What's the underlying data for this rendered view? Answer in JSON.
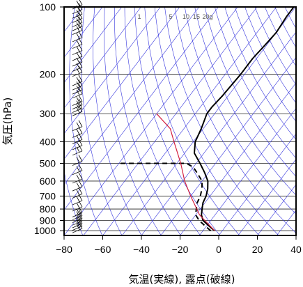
{
  "chart_data": {
    "type": "line",
    "title": "",
    "xlabel": "気温(実線), 露点(破線)",
    "ylabel": "気圧(hPa)",
    "xlim": [
      -80,
      40
    ],
    "ylim": [
      1050,
      100
    ],
    "y_scale": "log",
    "x_ticks": [
      "−80",
      "−60",
      "−40",
      "−20",
      "0",
      "20",
      "40"
    ],
    "y_ticks": [
      "100",
      "200",
      "300",
      "400",
      "500",
      "600",
      "700",
      "800",
      "900",
      "1000"
    ],
    "mixing_ratio_labels": [
      "1",
      "5",
      "10",
      "15",
      "20g"
    ],
    "colors": {
      "isotherms": "#3333dd",
      "dry_adiabats": "#3333dd",
      "lifted_parcel": "#d42040",
      "temperature": "#000000",
      "dewpoint": "#000000",
      "wind_barbs": "#000000",
      "grid": "#000000"
    },
    "series": [
      {
        "role": "temperature",
        "style": "solid",
        "points": [
          {
            "p": 1000,
            "t": -4
          },
          {
            "p": 950,
            "t": -9
          },
          {
            "p": 900,
            "t": -14
          },
          {
            "p": 850,
            "t": -17
          },
          {
            "p": 800,
            "t": -19
          },
          {
            "p": 750,
            "t": -21
          },
          {
            "p": 700,
            "t": -22
          },
          {
            "p": 650,
            "t": -24
          },
          {
            "p": 600,
            "t": -27
          },
          {
            "p": 550,
            "t": -32
          },
          {
            "p": 500,
            "t": -38
          },
          {
            "p": 450,
            "t": -45
          },
          {
            "p": 400,
            "t": -49
          },
          {
            "p": 350,
            "t": -51
          },
          {
            "p": 300,
            "t": -54
          },
          {
            "p": 280,
            "t": -54
          },
          {
            "p": 250,
            "t": -53
          },
          {
            "p": 200,
            "t": -52
          },
          {
            "p": 170,
            "t": -52
          },
          {
            "p": 150,
            "t": -51
          },
          {
            "p": 130,
            "t": -50
          },
          {
            "p": 110,
            "t": -51
          },
          {
            "p": 100,
            "t": -51
          }
        ]
      },
      {
        "role": "dewpoint",
        "style": "dashed",
        "points": [
          {
            "p": 1000,
            "t": -6
          },
          {
            "p": 950,
            "t": -11
          },
          {
            "p": 900,
            "t": -16
          },
          {
            "p": 850,
            "t": -20
          },
          {
            "p": 800,
            "t": -22
          },
          {
            "p": 750,
            "t": -24
          },
          {
            "p": 700,
            "t": -25
          },
          {
            "p": 650,
            "t": -27
          },
          {
            "p": 600,
            "t": -30
          },
          {
            "p": 550,
            "t": -36
          },
          {
            "p": 520,
            "t": -40
          },
          {
            "p": 500,
            "t": -45
          },
          {
            "p": 500,
            "t": -80
          }
        ]
      },
      {
        "role": "lifted_parcel",
        "style": "solid",
        "points": [
          {
            "p": 1000,
            "t": -4
          },
          {
            "p": 850,
            "t": -18
          },
          {
            "p": 700,
            "t": -30
          },
          {
            "p": 600,
            "t": -39
          },
          {
            "p": 500,
            "t": -48
          },
          {
            "p": 400,
            "t": -60
          },
          {
            "p": 350,
            "t": -67
          },
          {
            "p": 300,
            "t": -80
          }
        ]
      }
    ],
    "wind_barb_pressures": [
      1000,
      975,
      950,
      925,
      900,
      875,
      850,
      800,
      750,
      700,
      650,
      600,
      550,
      500,
      450,
      425,
      400,
      375,
      350,
      300,
      290,
      280,
      270,
      250,
      240,
      230,
      220,
      200,
      190,
      180,
      170,
      160,
      150,
      140,
      130,
      125,
      120,
      115,
      110,
      105,
      100
    ]
  }
}
